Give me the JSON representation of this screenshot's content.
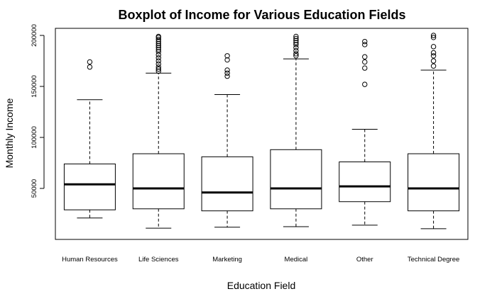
{
  "chart_data": {
    "type": "boxplot",
    "title": "Boxplot of Income for Various Education Fields",
    "xlabel": "Education Field",
    "ylabel": "Monthly Income",
    "ylim": [
      0,
      205000
    ],
    "yticks": [
      50000,
      100000,
      150000,
      200000
    ],
    "ytick_labels": [
      "50000",
      "100000",
      "150000",
      "200000"
    ],
    "categories": [
      "Human Resources",
      "Life Sciences",
      "Marketing",
      "Medical",
      "Other",
      "Technical Degree"
    ],
    "boxes": [
      {
        "category": "Human Resources",
        "whisker_low": 21000,
        "q1": 29000,
        "median": 54000,
        "q3": 74000,
        "whisker_high": 137000,
        "outliers": [
          169000,
          174000
        ]
      },
      {
        "category": "Life Sciences",
        "whisker_low": 11000,
        "q1": 30000,
        "median": 50000,
        "q3": 84000,
        "whisker_high": 163000,
        "outliers": [
          165000,
          167000,
          169000,
          172000,
          175000,
          178000,
          181000,
          184000,
          186000,
          188000,
          190000,
          192000,
          194000,
          196000,
          198000,
          199000
        ]
      },
      {
        "category": "Marketing",
        "whisker_low": 12000,
        "q1": 28000,
        "median": 46000,
        "q3": 81000,
        "whisker_high": 142000,
        "outliers": [
          160000,
          163000,
          166000,
          176000,
          180000
        ]
      },
      {
        "category": "Medical",
        "whisker_low": 12500,
        "q1": 30000,
        "median": 50000,
        "q3": 88000,
        "whisker_high": 177000,
        "outliers": [
          180000,
          182000,
          185000,
          188000,
          191000,
          193000,
          195000,
          197000,
          199000
        ]
      },
      {
        "category": "Other",
        "whisker_low": 14000,
        "q1": 37000,
        "median": 52000,
        "q3": 76000,
        "whisker_high": 108000,
        "outliers": [
          152000,
          168000,
          174000,
          179000,
          191000,
          194000
        ]
      },
      {
        "category": "Technical Degree",
        "whisker_low": 10500,
        "q1": 28000,
        "median": 50000,
        "q3": 84000,
        "whisker_high": 166000,
        "outliers": [
          170000,
          175000,
          180000,
          183000,
          189000,
          198000,
          200000
        ]
      }
    ],
    "grid": false,
    "legend": "none"
  }
}
